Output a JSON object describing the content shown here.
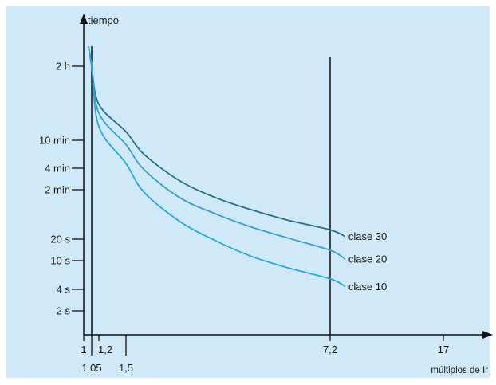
{
  "chart_data": {
    "type": "line",
    "title": "",
    "ylabel": "tiempo",
    "xlabel": "múltiplos de Ir",
    "y_scale": "log",
    "grid": false,
    "background_color": "#cfe9f8",
    "y_ticks": [
      {
        "label": "2 h",
        "value_s": 7200
      },
      {
        "label": "10 min",
        "value_s": 600
      },
      {
        "label": "4 min",
        "value_s": 240
      },
      {
        "label": "2 min",
        "value_s": 120
      },
      {
        "label": "20 s",
        "value_s": 20
      },
      {
        "label": "10 s",
        "value_s": 10
      },
      {
        "label": "4 s",
        "value_s": 4
      },
      {
        "label": "2 s",
        "value_s": 2
      }
    ],
    "x_ticks": [
      {
        "label": "1",
        "value": 1,
        "row": 1
      },
      {
        "label": "1,05",
        "value": 1.05,
        "row": 2
      },
      {
        "label": "1,2",
        "value": 1.2,
        "row": 1
      },
      {
        "label": "1,5",
        "value": 1.5,
        "row": 2
      },
      {
        "label": "7,2",
        "value": 7.2,
        "row": 1
      },
      {
        "label": "17",
        "value": 17,
        "row": 1
      }
    ],
    "reference_lines": [
      {
        "orientation": "vertical",
        "x": 1.05
      },
      {
        "orientation": "vertical",
        "x": 7.2
      }
    ],
    "series": [
      {
        "name": "clase 30",
        "color": "#2a6f8e",
        "x": [
          1.05,
          1.2,
          1.5,
          2,
          3,
          4,
          5,
          6,
          7.2,
          8.5
        ],
        "y": [
          7200,
          2000,
          800,
          380,
          160,
          90,
          58,
          40,
          28,
          22
        ]
      },
      {
        "name": "clase 20",
        "color": "#3c9ec9",
        "x": [
          1.05,
          1.2,
          1.5,
          2,
          3,
          4,
          5,
          6,
          7.2,
          8.5
        ],
        "y": [
          7200,
          1500,
          520,
          230,
          90,
          50,
          31,
          21,
          14,
          10.5
        ]
      },
      {
        "name": "clase 10",
        "color": "#2aa6e0",
        "x": [
          1.05,
          1.2,
          1.5,
          2,
          3,
          4,
          5,
          6,
          7.2,
          8.5
        ],
        "y": [
          7200,
          950,
          280,
          110,
          38,
          19,
          11.5,
          8,
          5.6,
          4.4
        ]
      }
    ]
  }
}
